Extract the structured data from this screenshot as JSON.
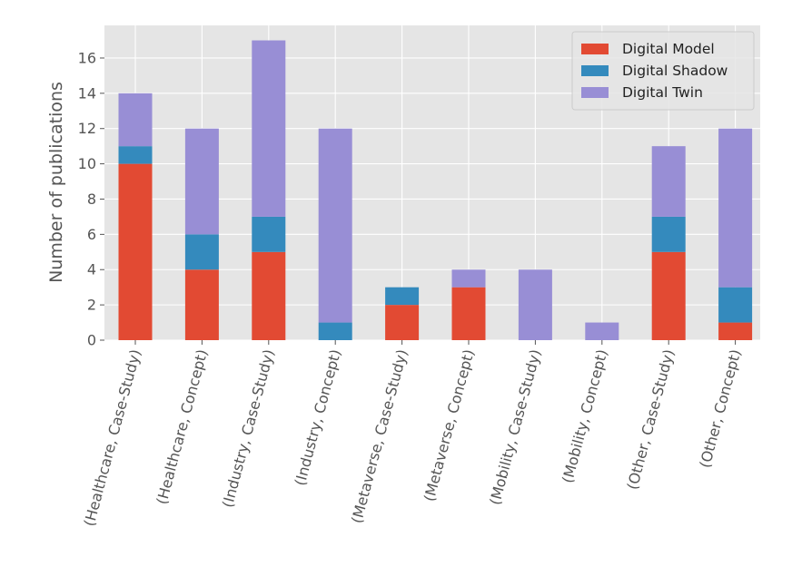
{
  "chart_data": {
    "type": "bar",
    "stacked": true,
    "categories": [
      "(Healthcare, Case-Study)",
      "(Healthcare, Concept)",
      "(Industry, Case-Study)",
      "(Industry, Concept)",
      "(Metaverse, Case-Study)",
      "(Metaverse, Concept)",
      "(Mobility, Case-Study)",
      "(Mobility, Concept)",
      "(Other, Case-Study)",
      "(Other, Concept)"
    ],
    "series": [
      {
        "name": "Digital Model",
        "color": "#e24a33",
        "values": [
          10,
          4,
          5,
          0,
          2,
          3,
          0,
          0,
          5,
          1
        ]
      },
      {
        "name": "Digital Shadow",
        "color": "#348abd",
        "values": [
          1,
          2,
          2,
          1,
          1,
          0,
          0,
          0,
          2,
          2
        ]
      },
      {
        "name": "Digital Twin",
        "color": "#988ed5",
        "values": [
          3,
          6,
          10,
          11,
          0,
          1,
          4,
          1,
          4,
          9
        ]
      }
    ],
    "ylabel": "Number of publications",
    "ylim": [
      0,
      17.85
    ],
    "yticks": [
      0,
      2,
      4,
      6,
      8,
      10,
      12,
      14,
      16
    ],
    "grid": true,
    "legend": "top-right",
    "background": "#e5e5e5"
  }
}
